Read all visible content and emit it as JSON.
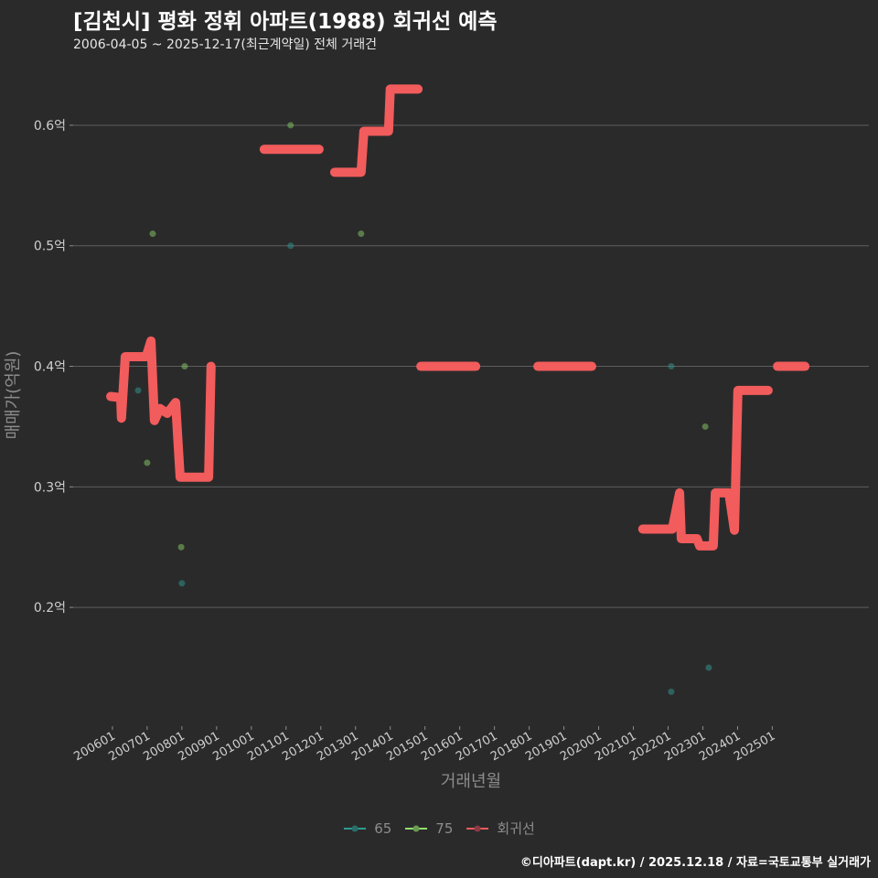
{
  "title": "[김천시] 평화 정휘 아파트(1988) 회귀선 예측",
  "subtitle": "2006-04-05 ~ 2025-12-17(최근계약일) 전체 거래건",
  "footer": "©디아파트(dapt.kr) / 2025.12.18 / 자료=국토교통부 실거래가",
  "chart_data": {
    "type": "scatter+line",
    "xlabel": "거래년월",
    "ylabel": "매매가(억원)",
    "xlim": [
      2004.87,
      2027.78
    ],
    "ylim": [
      0.1045,
      0.647
    ],
    "grid": true,
    "x_ticks": [
      {
        "value": 2006,
        "label": "200601"
      },
      {
        "value": 2007,
        "label": "200701"
      },
      {
        "value": 2008,
        "label": "200801"
      },
      {
        "value": 2009,
        "label": "200901"
      },
      {
        "value": 2010,
        "label": "201001"
      },
      {
        "value": 2011,
        "label": "201101"
      },
      {
        "value": 2012,
        "label": "201201"
      },
      {
        "value": 2013,
        "label": "201301"
      },
      {
        "value": 2014,
        "label": "201401"
      },
      {
        "value": 2015,
        "label": "201501"
      },
      {
        "value": 2016,
        "label": "201601"
      },
      {
        "value": 2017,
        "label": "201701"
      },
      {
        "value": 2018,
        "label": "201801"
      },
      {
        "value": 2019,
        "label": "201901"
      },
      {
        "value": 2020,
        "label": "202001"
      },
      {
        "value": 2021,
        "label": "202101"
      },
      {
        "value": 2022,
        "label": "202201"
      },
      {
        "value": 2023,
        "label": "202301"
      },
      {
        "value": 2024,
        "label": "202401"
      },
      {
        "value": 2025,
        "label": "202501"
      }
    ],
    "y_ticks": [
      {
        "value": 0.2,
        "label": "0.2억"
      },
      {
        "value": 0.3,
        "label": "0.3억"
      },
      {
        "value": 0.4,
        "label": "0.4억"
      },
      {
        "value": 0.5,
        "label": "0.5억"
      },
      {
        "value": 0.6,
        "label": "0.6억"
      }
    ],
    "legend_position": "bottom",
    "series": [
      {
        "name": "65",
        "kind": "scatter",
        "color": "#2f8f88",
        "points": [
          [
            2006.74,
            0.38
          ],
          [
            2008.0,
            0.22
          ],
          [
            2011.13,
            0.5
          ],
          [
            2022.09,
            0.4
          ],
          [
            2022.09,
            0.13
          ],
          [
            2023.17,
            0.15
          ]
        ]
      },
      {
        "name": "75",
        "kind": "scatter",
        "color": "#7fc060",
        "points": [
          [
            2007.0,
            0.32
          ],
          [
            2007.16,
            0.51
          ],
          [
            2007.98,
            0.25
          ],
          [
            2008.08,
            0.4
          ],
          [
            2011.13,
            0.6
          ],
          [
            2013.16,
            0.51
          ],
          [
            2023.07,
            0.35
          ]
        ]
      },
      {
        "name": "회귀선",
        "kind": "line",
        "color": "#f25c5c",
        "segments": [
          [
            [
              2005.95,
              0.375
            ],
            [
              2006.24,
              0.374
            ],
            [
              2006.26,
              0.357
            ],
            [
              2006.37,
              0.408
            ],
            [
              2006.97,
              0.408
            ],
            [
              2007.11,
              0.421
            ],
            [
              2007.21,
              0.355
            ],
            [
              2007.37,
              0.365
            ],
            [
              2007.58,
              0.361
            ],
            [
              2007.82,
              0.37
            ],
            [
              2007.95,
              0.308
            ],
            [
              2008.77,
              0.308
            ],
            [
              2008.84,
              0.4
            ]
          ],
          [
            [
              2010.37,
              0.58
            ],
            [
              2011.95,
              0.58
            ]
          ],
          [
            [
              2012.4,
              0.561
            ],
            [
              2013.16,
              0.561
            ],
            [
              2013.24,
              0.595
            ],
            [
              2013.95,
              0.595
            ],
            [
              2014.0,
              0.63
            ],
            [
              2014.8,
              0.63
            ]
          ],
          [
            [
              2014.88,
              0.4
            ],
            [
              2016.46,
              0.4
            ]
          ],
          [
            [
              2018.25,
              0.4
            ],
            [
              2019.8,
              0.4
            ]
          ],
          [
            [
              2021.27,
              0.265
            ],
            [
              2022.12,
              0.265
            ],
            [
              2022.33,
              0.295
            ],
            [
              2022.38,
              0.257
            ],
            [
              2022.83,
              0.257
            ],
            [
              2022.91,
              0.251
            ],
            [
              2023.3,
              0.251
            ],
            [
              2023.36,
              0.295
            ],
            [
              2023.75,
              0.295
            ],
            [
              2023.91,
              0.264
            ],
            [
              2024.01,
              0.38
            ],
            [
              2024.88,
              0.38
            ]
          ],
          [
            [
              2025.15,
              0.4
            ],
            [
              2025.94,
              0.4
            ]
          ]
        ]
      }
    ]
  }
}
